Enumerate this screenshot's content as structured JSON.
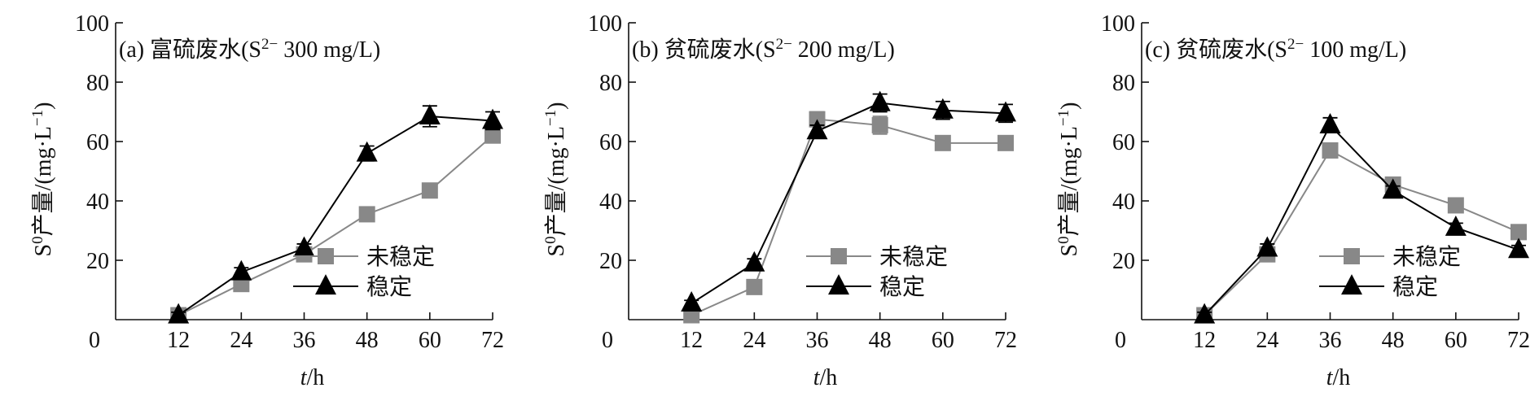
{
  "chart_data": [
    {
      "type": "line",
      "title_prefix": "(a)",
      "title_main": "富硫废水(S",
      "title_sup": "2−",
      "title_conc": "300 mg/L)",
      "xlabel_italic": "t",
      "xlabel_rest": "/h",
      "ylabel_main": "S",
      "ylabel_sup": "0",
      "ylabel_rest1": "产量/(mg·L",
      "ylabel_sup2": "−1",
      "ylabel_rest2": ")",
      "x_ticks": [
        "0",
        "12",
        "24",
        "36",
        "48",
        "60",
        "72"
      ],
      "y_ticks": [
        "20",
        "40",
        "60",
        "80",
        "100"
      ],
      "ylim": [
        0,
        100
      ],
      "xlim": [
        0,
        72
      ],
      "legend": [
        "未稳定",
        "稳定"
      ],
      "series": [
        {
          "name": "未稳定",
          "color": "#888888",
          "marker": "square",
          "x": [
            12,
            24,
            36,
            48,
            60,
            72
          ],
          "values": [
            1.5,
            12,
            22,
            35.5,
            43.5,
            62
          ],
          "err": [
            1,
            1.5,
            1.5,
            1.5,
            1.5,
            2
          ]
        },
        {
          "name": "稳定",
          "color": "#000000",
          "marker": "triangle",
          "x": [
            12,
            24,
            36,
            48,
            60,
            72
          ],
          "values": [
            1.5,
            16,
            24,
            56,
            68.5,
            67
          ],
          "err": [
            1,
            1.5,
            1.5,
            2.5,
            3.5,
            3
          ]
        }
      ]
    },
    {
      "type": "line",
      "title_prefix": "(b)",
      "title_main": "贫硫废水(S",
      "title_sup": "2−",
      "title_conc": "200 mg/L)",
      "xlabel_italic": "t",
      "xlabel_rest": "/h",
      "ylabel_main": "S",
      "ylabel_sup": "0",
      "ylabel_rest1": "产量/(mg·L",
      "ylabel_sup2": "−1",
      "ylabel_rest2": ")",
      "x_ticks": [
        "0",
        "12",
        "24",
        "36",
        "48",
        "60",
        "72"
      ],
      "y_ticks": [
        "20",
        "40",
        "60",
        "80",
        "100"
      ],
      "ylim": [
        0,
        100
      ],
      "xlim": [
        0,
        72
      ],
      "legend": [
        "未稳定",
        "稳定"
      ],
      "series": [
        {
          "name": "未稳定",
          "color": "#888888",
          "marker": "square",
          "x": [
            12,
            24,
            36,
            48,
            60,
            72
          ],
          "values": [
            1.5,
            11,
            67.5,
            65.5,
            59.5,
            59.5
          ],
          "err": [
            1,
            1.5,
            2.5,
            3,
            2,
            2
          ]
        },
        {
          "name": "稳定",
          "color": "#000000",
          "marker": "triangle",
          "x": [
            12,
            24,
            36,
            48,
            60,
            72
          ],
          "values": [
            5.5,
            19,
            63.5,
            73,
            70.5,
            69.5
          ],
          "err": [
            1,
            1.5,
            2,
            3,
            3,
            3
          ]
        }
      ]
    },
    {
      "type": "line",
      "title_prefix": "(c)",
      "title_main": "贫硫废水(S",
      "title_sup": "2−",
      "title_conc": "100 mg/L)",
      "xlabel_italic": "t",
      "xlabel_rest": "/h",
      "ylabel_main": "S",
      "ylabel_sup": "0",
      "ylabel_rest1": "产量/(mg·L",
      "ylabel_sup2": "−1",
      "ylabel_rest2": ")",
      "x_ticks": [
        "0",
        "12",
        "24",
        "36",
        "48",
        "60",
        "72"
      ],
      "y_ticks": [
        "20",
        "40",
        "60",
        "80",
        "100"
      ],
      "ylim": [
        0,
        100
      ],
      "xlim": [
        0,
        72
      ],
      "legend": [
        "未稳定",
        "稳定"
      ],
      "series": [
        {
          "name": "未稳定",
          "color": "#888888",
          "marker": "square",
          "x": [
            12,
            24,
            36,
            48,
            60,
            72
          ],
          "values": [
            1.5,
            22,
            57,
            45.5,
            38.5,
            29.5
          ],
          "err": [
            1,
            1.5,
            2,
            1.5,
            1.5,
            1.5
          ]
        },
        {
          "name": "稳定",
          "color": "#000000",
          "marker": "triangle",
          "x": [
            12,
            24,
            36,
            48,
            60,
            72
          ],
          "values": [
            1.5,
            24,
            65.5,
            43.5,
            31,
            23.5
          ],
          "err": [
            1,
            1.5,
            2.5,
            1.5,
            1.5,
            1.5
          ]
        }
      ]
    }
  ]
}
